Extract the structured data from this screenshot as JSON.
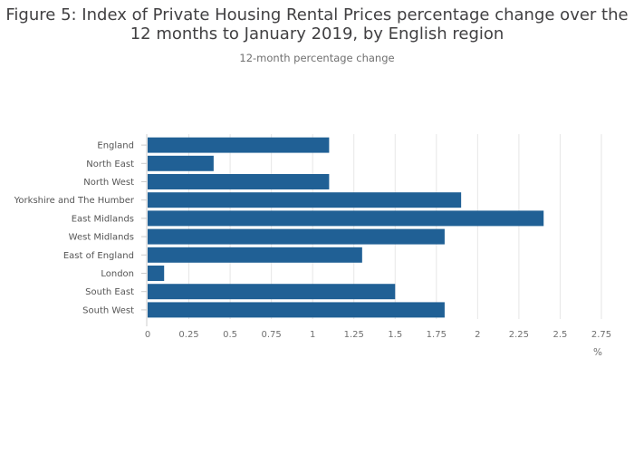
{
  "title_line1": "Figure 5: Index of Private Housing Rental Prices percentage change over the",
  "title_line2": "12 months to January 2019, by English region",
  "subtitle": "12-month percentage change",
  "chart_data": {
    "type": "bar",
    "orientation": "horizontal",
    "title": "Figure 5: Index of Private Housing Rental Prices percentage change over the 12 months to January 2019, by English region",
    "subtitle": "12-month percentage change",
    "xlabel": "%",
    "ylabel": "",
    "categories": [
      "England",
      "North East",
      "North West",
      "Yorkshire and The Humber",
      "East Midlands",
      "West Midlands",
      "East of England",
      "London",
      "South East",
      "South West"
    ],
    "values": [
      1.1,
      0.4,
      1.1,
      1.9,
      2.4,
      1.8,
      1.3,
      0.1,
      1.5,
      1.8
    ],
    "xlim": [
      0,
      2.75
    ],
    "xticks": [
      "0",
      "0.25",
      "0.5",
      "0.75",
      "1",
      "1.25",
      "1.5",
      "1.75",
      "2",
      "2.25",
      "2.5",
      "2.75"
    ],
    "grid": true,
    "legend": false,
    "bar_color": "#206095"
  }
}
